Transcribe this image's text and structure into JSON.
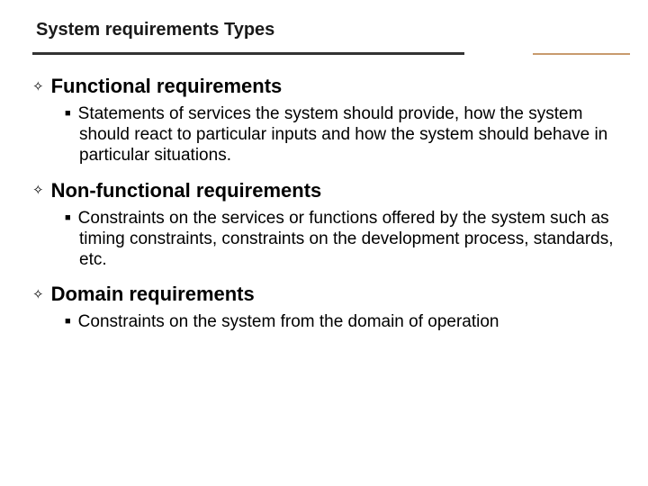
{
  "slide": {
    "title": "System requirements Types",
    "title_fontsize": 20,
    "title_color": "#1a1a1a",
    "rule": {
      "gray_color": "#333333",
      "tan_color": "#c89b6d"
    },
    "heading_fontsize": 22,
    "body_fontsize": 19,
    "text_color": "#000000",
    "background_color": "#ffffff",
    "bullet_diamond": "✧",
    "bullet_square": "■",
    "sections": [
      {
        "heading": "Functional requirements",
        "body": "Statements of services the system should provide, how the system should react to particular inputs and how the system should behave in particular situations."
      },
      {
        "heading": "Non-functional requirements",
        "body": "Constraints on the services or functions offered by the system such as timing constraints, constraints on the development process, standards, etc."
      },
      {
        "heading": "Domain requirements",
        "body": "Constraints on the system from the domain of operation"
      }
    ]
  }
}
